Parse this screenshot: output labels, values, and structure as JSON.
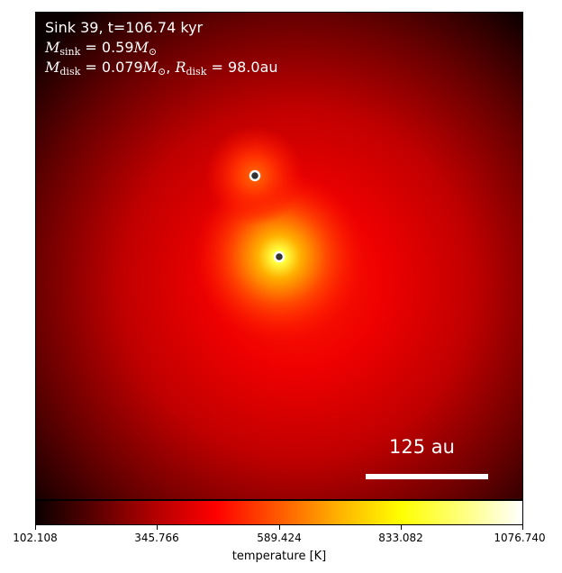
{
  "annotations": {
    "line1": "Sink 39, t=106.74 kyr",
    "sink_mass_symbol": "M",
    "sink_mass_subscript": "sink",
    "sink_mass_value": " = 0.59",
    "disk_mass_symbol": "M",
    "disk_mass_subscript": "disk",
    "disk_mass_value": " = 0.079",
    "solar_mass_unit": "M",
    "solar_subscript": "⊙",
    "separator": ", ",
    "disk_radius_symbol": "R",
    "disk_radius_subscript": "disk",
    "disk_radius_value": " = 98.0",
    "disk_radius_unit": "au"
  },
  "scale_bar": {
    "label": "125 au"
  },
  "colorbar": {
    "label": "temperature [K]",
    "ticks": [
      "102.108",
      "345.766",
      "589.424",
      "833.082",
      "1076.740"
    ],
    "colormap": "hot"
  },
  "colors": {
    "sink_marker_edge": "#ffffff",
    "sink_marker_fill": "#333333"
  }
}
